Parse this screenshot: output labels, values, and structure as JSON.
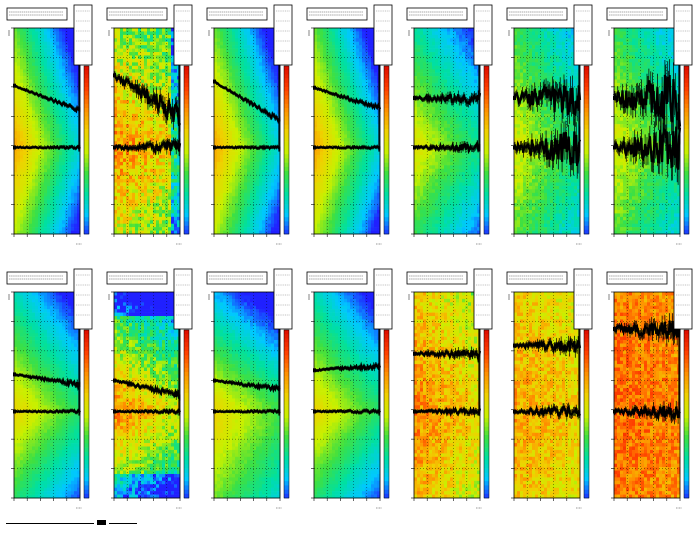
{
  "figure": {
    "rows": 2,
    "cols": 7,
    "background": "#ffffff"
  },
  "colors": {
    "frame": "#000000",
    "points": "#000000",
    "palette": [
      "#2020ff",
      "#00c8ff",
      "#00e0a0",
      "#40e040",
      "#c8f000",
      "#f0d000",
      "#ff9000",
      "#ff4000",
      "#e01000"
    ]
  },
  "chart_data": [
    {
      "type": "heatmap",
      "panel": "r1c1",
      "bg": "smooth-warm-left",
      "upper_band": {
        "y": [
          0.72,
          0.6
        ],
        "noise": 0.005
      },
      "lower_band": {
        "y": [
          0.42,
          0.42
        ],
        "noise": 0.003
      }
    },
    {
      "type": "heatmap",
      "panel": "r1c2",
      "bg": "noisy-warm",
      "upper_band": {
        "y": [
          0.77,
          0.57
        ],
        "noise": 0.03
      },
      "lower_band": {
        "y": [
          0.42,
          0.42
        ],
        "noise": 0.015
      }
    },
    {
      "type": "heatmap",
      "panel": "r1c3",
      "bg": "smooth-warm-left",
      "upper_band": {
        "y": [
          0.74,
          0.55
        ],
        "noise": 0.006
      },
      "lower_band": {
        "y": [
          0.42,
          0.42
        ],
        "noise": 0.003
      }
    },
    {
      "type": "heatmap",
      "panel": "r1c4",
      "bg": "smooth-warm-left",
      "upper_band": {
        "y": [
          0.71,
          0.61
        ],
        "noise": 0.006
      },
      "lower_band": {
        "y": [
          0.42,
          0.42
        ],
        "noise": 0.003
      }
    },
    {
      "type": "heatmap",
      "panel": "r1c5",
      "bg": "smooth-green",
      "upper_band": {
        "y": [
          0.66,
          0.66
        ],
        "noise": 0.015
      },
      "lower_band": {
        "y": [
          0.42,
          0.42
        ],
        "noise": 0.01
      }
    },
    {
      "type": "heatmap",
      "panel": "r1c6",
      "bg": "green-spread",
      "upper_band": {
        "y": [
          0.66,
          0.66
        ],
        "noise": 0.05
      },
      "lower_band": {
        "y": [
          0.42,
          0.42
        ],
        "noise": 0.05
      }
    },
    {
      "type": "heatmap",
      "panel": "r1c7",
      "bg": "green-spread",
      "upper_band": {
        "y": [
          0.66,
          0.66
        ],
        "noise": 0.07
      },
      "lower_band": {
        "y": [
          0.42,
          0.42
        ],
        "noise": 0.06
      }
    },
    {
      "type": "heatmap",
      "panel": "r2c1",
      "bg": "smooth-green-low",
      "upper_band": {
        "y": [
          0.6,
          0.55
        ],
        "noise": 0.006
      },
      "lower_band": {
        "y": [
          0.42,
          0.42
        ],
        "noise": 0.003
      }
    },
    {
      "type": "heatmap",
      "panel": "r2c2",
      "bg": "noisy-blue-edge",
      "upper_band": {
        "y": [
          0.57,
          0.5
        ],
        "noise": 0.008
      },
      "lower_band": {
        "y": [
          0.42,
          0.42
        ],
        "noise": 0.004
      }
    },
    {
      "type": "heatmap",
      "panel": "r2c3",
      "bg": "smooth-blue-top",
      "upper_band": {
        "y": [
          0.57,
          0.53
        ],
        "noise": 0.006
      },
      "lower_band": {
        "y": [
          0.42,
          0.42
        ],
        "noise": 0.003
      }
    },
    {
      "type": "heatmap",
      "panel": "r2c4",
      "bg": "smooth-green-low",
      "upper_band": {
        "y": [
          0.62,
          0.64
        ],
        "noise": 0.006
      },
      "lower_band": {
        "y": [
          0.42,
          0.42
        ],
        "noise": 0.004
      }
    },
    {
      "type": "heatmap",
      "panel": "r2c5",
      "bg": "noisy-warm-full",
      "upper_band": {
        "y": [
          0.7,
          0.7
        ],
        "noise": 0.012
      },
      "lower_band": {
        "y": [
          0.42,
          0.42
        ],
        "noise": 0.008
      }
    },
    {
      "type": "heatmap",
      "panel": "r2c6",
      "bg": "noisy-orange",
      "upper_band": {
        "y": [
          0.74,
          0.74
        ],
        "noise": 0.018
      },
      "lower_band": {
        "y": [
          0.42,
          0.42
        ],
        "noise": 0.015
      }
    },
    {
      "type": "heatmap",
      "panel": "r2c7",
      "bg": "noisy-red-full",
      "upper_band": {
        "y": [
          0.82,
          0.82
        ],
        "noise": 0.03
      },
      "lower_band": {
        "y": [
          0.42,
          0.42
        ],
        "noise": 0.02
      }
    }
  ]
}
